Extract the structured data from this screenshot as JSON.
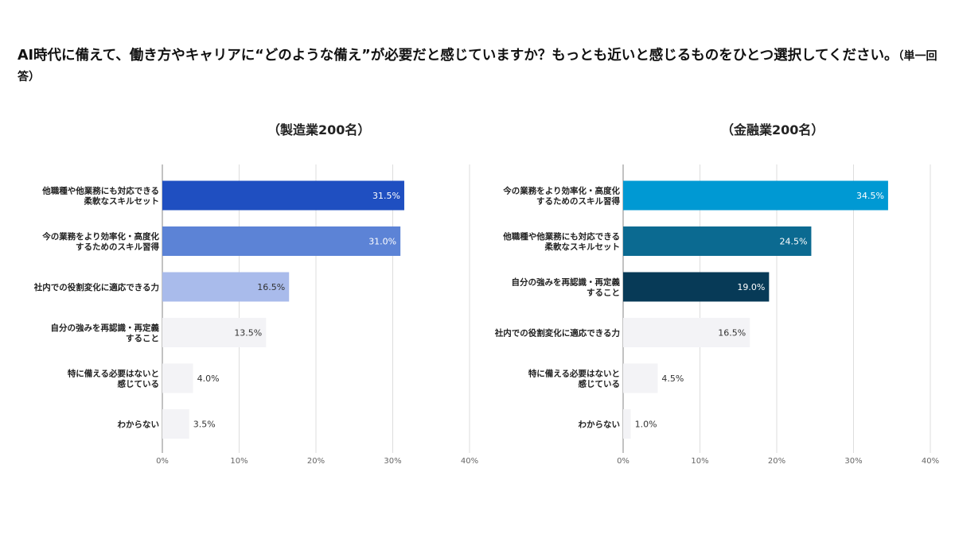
{
  "question": {
    "text": "AI時代に備えて、働き方やキャリアに“どのような備え”が必要だと感じていますか？もっとも近いと感じるものをひとつ選択してください。",
    "note": "（単一回答）"
  },
  "colors": {
    "manufacturing": [
      "#1f4fc1",
      "#5c83d6",
      "#a9bbeb",
      "#f3f3f6",
      "#f3f3f6",
      "#f3f3f6"
    ],
    "finance": [
      "#0099d3",
      "#0b6a91",
      "#073a57",
      "#f3f3f6",
      "#f3f3f6",
      "#f3f3f6"
    ],
    "label_on_dark": "#ffffff",
    "label_on_light": "#333333",
    "gridline": "#dddddd",
    "axis": "#999999"
  },
  "chart_data": [
    {
      "type": "bar",
      "orientation": "horizontal",
      "title": "（製造業200名）",
      "categories": [
        [
          "他職種や他業務にも対応できる",
          "柔軟なスキルセット"
        ],
        [
          "今の業務をより効率化・高度化",
          "するためのスキル習得"
        ],
        [
          "社内での役割変化に適応できる力"
        ],
        [
          "自分の強みを再認識・再定義",
          "すること"
        ],
        [
          "特に備える必要はないと",
          "感じている"
        ],
        [
          "わからない"
        ]
      ],
      "values": [
        31.5,
        31.0,
        16.5,
        13.5,
        4.0,
        3.5
      ],
      "value_labels": [
        "31.5%",
        "31.0%",
        "16.5%",
        "13.5%",
        "4.0%",
        "3.5%"
      ],
      "xlim": [
        0,
        40
      ],
      "ticks": [
        0,
        10,
        20,
        30,
        40
      ],
      "tick_labels": [
        "0%",
        "10%",
        "20%",
        "30%",
        "40%"
      ],
      "grid": true
    },
    {
      "type": "bar",
      "orientation": "horizontal",
      "title": "（金融業200名）",
      "categories": [
        [
          "今の業務をより効率化・高度化",
          "するためのスキル習得"
        ],
        [
          "他職種や他業務にも対応できる",
          "柔軟なスキルセット"
        ],
        [
          "自分の強みを再認識・再定義",
          "すること"
        ],
        [
          "社内での役割変化に適応できる力"
        ],
        [
          "特に備える必要はないと",
          "感じている"
        ],
        [
          "わからない"
        ]
      ],
      "values": [
        34.5,
        24.5,
        19.0,
        16.5,
        4.5,
        1.0
      ],
      "value_labels": [
        "34.5%",
        "24.5%",
        "19.0%",
        "16.5%",
        "4.5%",
        "1.0%"
      ],
      "xlim": [
        0,
        40
      ],
      "ticks": [
        0,
        10,
        20,
        30,
        40
      ],
      "tick_labels": [
        "0%",
        "10%",
        "20%",
        "30%",
        "40%"
      ],
      "grid": true
    }
  ]
}
